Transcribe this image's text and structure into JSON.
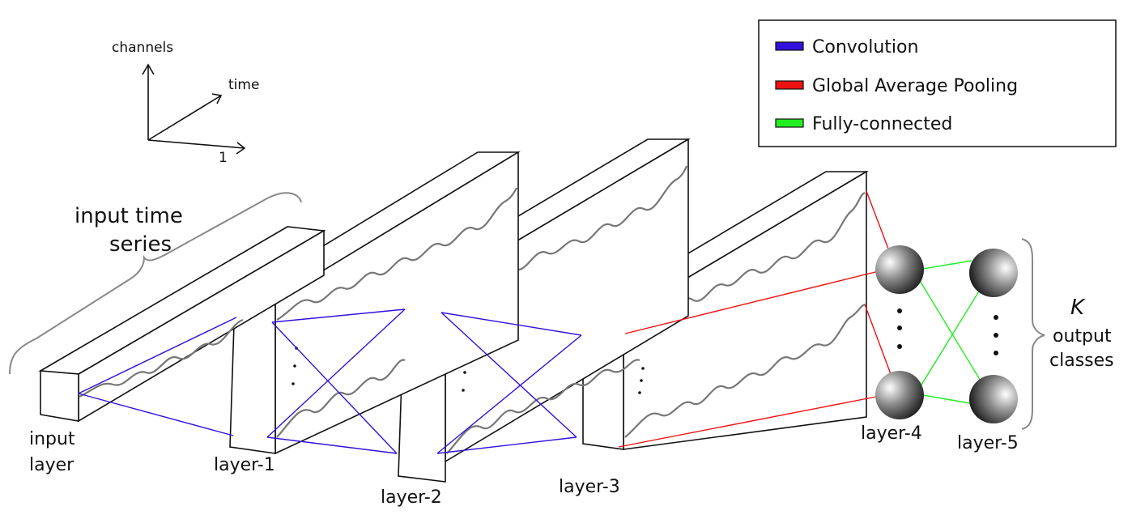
{
  "axes": {
    "channels": "channels",
    "time": "time",
    "one": "1"
  },
  "legend": {
    "items": [
      {
        "label": "Convolution",
        "color": "#3311dd"
      },
      {
        "label": "Global Average Pooling",
        "color": "#ee1111"
      },
      {
        "label": "Fully-connected",
        "color": "#22ee22"
      }
    ]
  },
  "labels": {
    "input_time_series_line1": "input time",
    "input_time_series_line2": "series",
    "input_layer_line1": "input",
    "input_layer_line2": "layer",
    "layer1": "layer-1",
    "layer2": "layer-2",
    "layer3": "layer-3",
    "layer4": "layer-4",
    "layer5": "layer-5",
    "k": "K",
    "output_line1": "output",
    "output_line2": "classes"
  },
  "colors": {
    "convolution": "#3311dd",
    "gap": "#ee1111",
    "fc": "#22ee22",
    "series": "#777777"
  }
}
